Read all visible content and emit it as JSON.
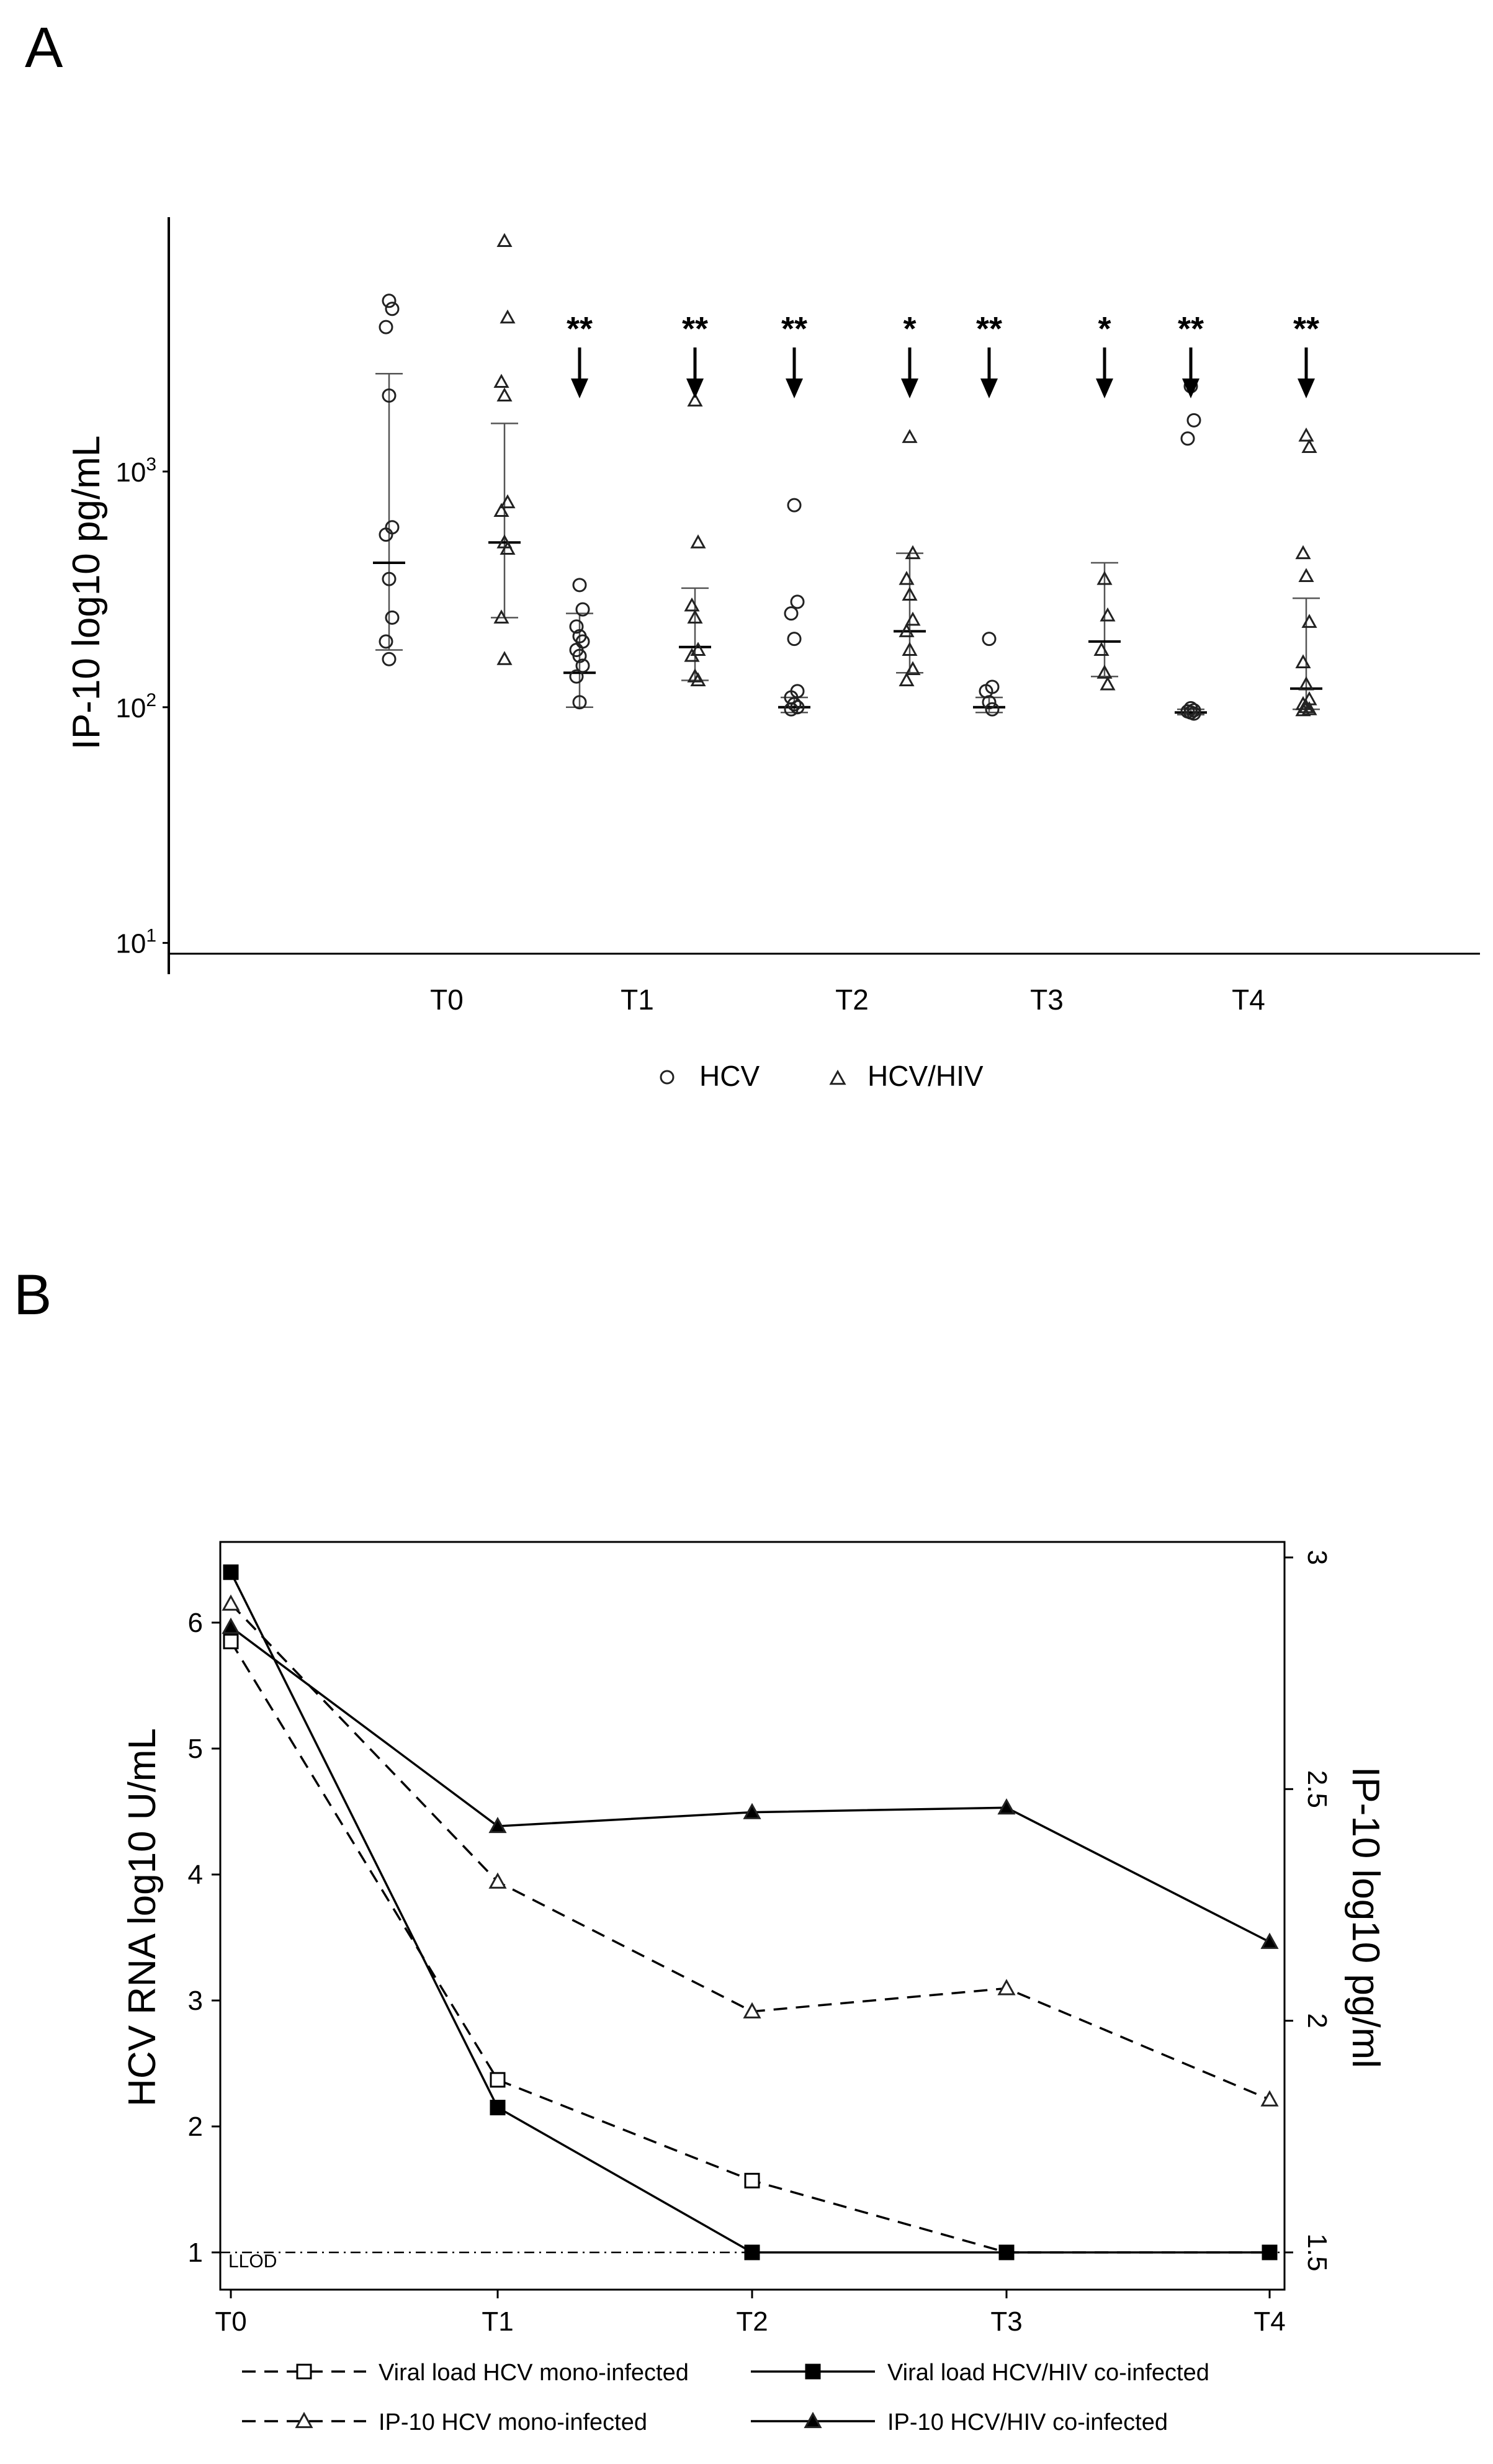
{
  "chart_data": [
    {
      "panel": "A",
      "type": "scatter",
      "ylabel": "IP-10 log10 pg/mL",
      "yscale": "log",
      "ylim": [
        9,
        12000
      ],
      "y_ticks": [
        {
          "value": 10,
          "label": "10",
          "exp": "1"
        },
        {
          "value": 100,
          "label": "10",
          "exp": "2"
        },
        {
          "value": 1000,
          "label": "10",
          "exp": "3"
        }
      ],
      "categories": [
        "T0",
        "T1",
        "T2",
        "T3",
        "T4"
      ],
      "legend": [
        {
          "name": "HCV",
          "marker": "circle"
        },
        {
          "name": "HCV/HIV",
          "marker": "triangle"
        }
      ],
      "series": [
        {
          "name": "HCV",
          "marker": "circle",
          "points": [
            [
              5300,
              4900,
              4100,
              2100,
              580,
              540,
              350,
              240,
              190,
              160
            ],
            [
              330,
              260,
              220,
              200,
              190,
              175,
              165,
              150,
              135,
              105
            ],
            [
              720,
              280,
              250,
              195,
              117,
              110,
              103,
              100,
              98
            ],
            [
              195,
              122,
              117,
              105,
              98
            ],
            [
              2300,
              1650,
              1380,
              99,
              97,
              96,
              95,
              94
            ]
          ],
          "stats": [
            {
              "median": 410,
              "low": 175,
              "high": 2600
            },
            {
              "median": 140,
              "low": 100,
              "high": 250
            },
            {
              "median": 100,
              "low": 95,
              "high": 110
            },
            {
              "median": 100,
              "low": 95,
              "high": 110
            },
            {
              "median": 95,
              "low": 93,
              "high": 98
            }
          ],
          "significance": [
            "",
            "**",
            "**",
            "**",
            "**"
          ]
        },
        {
          "name": "HCV/HIV",
          "marker": "triangle",
          "points": [
            [
              9500,
              4500,
              2400,
              2100,
              740,
              680,
              500,
              470,
              240,
              160
            ],
            [
              2000,
              500,
              270,
              240,
              175,
              165,
              135,
              130
            ],
            [
              1400,
              450,
              350,
              300,
              235,
              210,
              175,
              145,
              130
            ],
            [
              350,
              245,
              175,
              140,
              125
            ],
            [
              1420,
              1270,
              450,
              360,
              230,
              155,
              125,
              108,
              103,
              100,
              98,
              97
            ]
          ],
          "stats": [
            {
              "median": 500,
              "low": 240,
              "high": 1600
            },
            {
              "median": 180,
              "low": 130,
              "high": 320
            },
            {
              "median": 210,
              "low": 140,
              "high": 450
            },
            {
              "median": 190,
              "low": 135,
              "high": 410
            },
            {
              "median": 120,
              "low": 98,
              "high": 290
            }
          ],
          "significance": [
            "",
            "**",
            "*",
            "*",
            "**"
          ]
        }
      ]
    },
    {
      "panel": "B",
      "type": "line",
      "x": [
        "T0",
        "T1",
        "T2",
        "T3",
        "T4"
      ],
      "ylabel_left": "HCV RNA log10 U/mL",
      "ylabel_right": "IP-10 log10 pg/ml",
      "ylim_left": [
        0.7,
        6.5
      ],
      "ylim_right": [
        1.5,
        3.0
      ],
      "yticks_left": [
        1,
        2,
        3,
        4,
        5,
        6
      ],
      "yticks_right": [
        1.5,
        2,
        2.5,
        3
      ],
      "lines": [
        {
          "y": 1,
          "axis": "left",
          "style": "dash-dot",
          "label": "LLOD"
        }
      ],
      "series": [
        {
          "name": "Viral load HCV mono-infected",
          "axis": "left",
          "dash": true,
          "marker": "square-open",
          "values": [
            5.85,
            2.37,
            1.57,
            1.0,
            1.0
          ]
        },
        {
          "name": "Viral load HCV/HIV co-infected",
          "axis": "left",
          "dash": false,
          "marker": "square-filled",
          "values": [
            6.4,
            2.15,
            1.0,
            1.0,
            1.0
          ]
        },
        {
          "name": "IP-10 HCV mono-infected",
          "axis": "right",
          "dash": true,
          "marker": "triangle-open",
          "values": [
            2.9,
            2.3,
            2.02,
            2.07,
            1.83
          ]
        },
        {
          "name": "IP-10 HCV/HIV co-infected",
          "axis": "right",
          "dash": false,
          "marker": "triangle-filled",
          "values": [
            2.85,
            2.42,
            2.45,
            2.46,
            2.17
          ]
        }
      ]
    }
  ]
}
